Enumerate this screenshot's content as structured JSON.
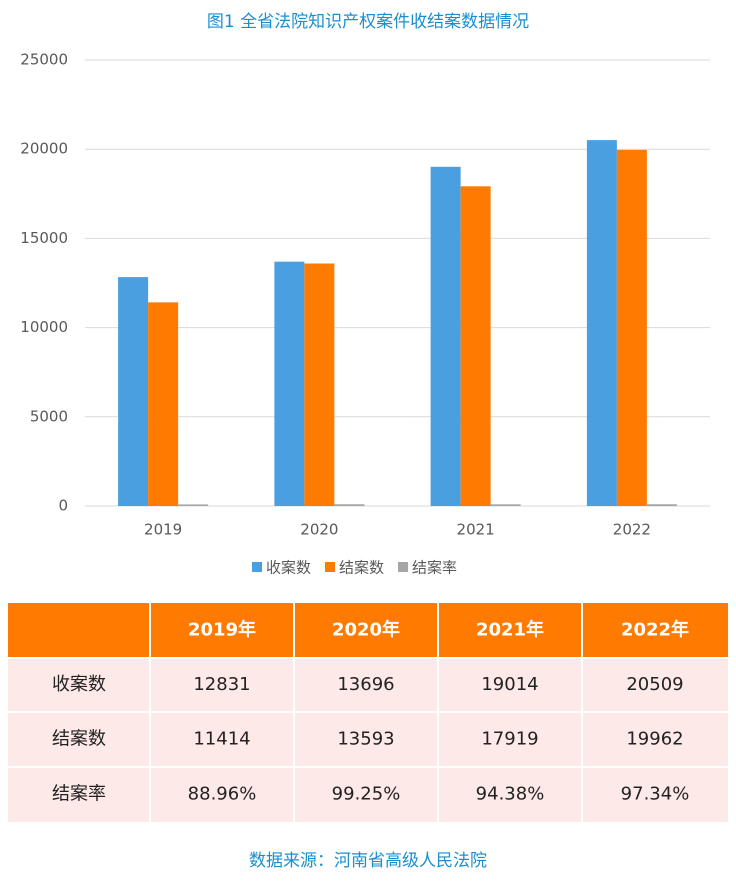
{
  "chart_data": {
    "type": "bar",
    "title": "图1 全省法院知识产权案件收结案数据情况",
    "categories": [
      "2019",
      "2020",
      "2021",
      "2022"
    ],
    "series": [
      {
        "name": "收案数",
        "color": "#4a9fe0",
        "values": [
          12831,
          13696,
          19014,
          20509
        ]
      },
      {
        "name": "结案数",
        "color": "#ff7a00",
        "values": [
          11414,
          13593,
          17919,
          19962
        ]
      },
      {
        "name": "结案率",
        "color": "#a5a5a5",
        "values": [
          88.96,
          99.25,
          94.38,
          97.34
        ]
      }
    ],
    "ylim": [
      0,
      25000
    ],
    "yticks": [
      0,
      5000,
      10000,
      15000,
      20000,
      25000
    ],
    "grid": true,
    "legend": "bottom"
  },
  "table": {
    "header": [
      "2019年",
      "2020年",
      "2021年",
      "2022年"
    ],
    "rows": [
      {
        "label": "收案数",
        "cells": [
          "12831",
          "13696",
          "19014",
          "20509"
        ]
      },
      {
        "label": "结案数",
        "cells": [
          "11414",
          "13593",
          "17919",
          "19962"
        ]
      },
      {
        "label": "结案率",
        "cells": [
          "88.96%",
          "99.25%",
          "94.38%",
          "97.34%"
        ]
      }
    ]
  },
  "source": "数据来源：河南省高级人民法院"
}
